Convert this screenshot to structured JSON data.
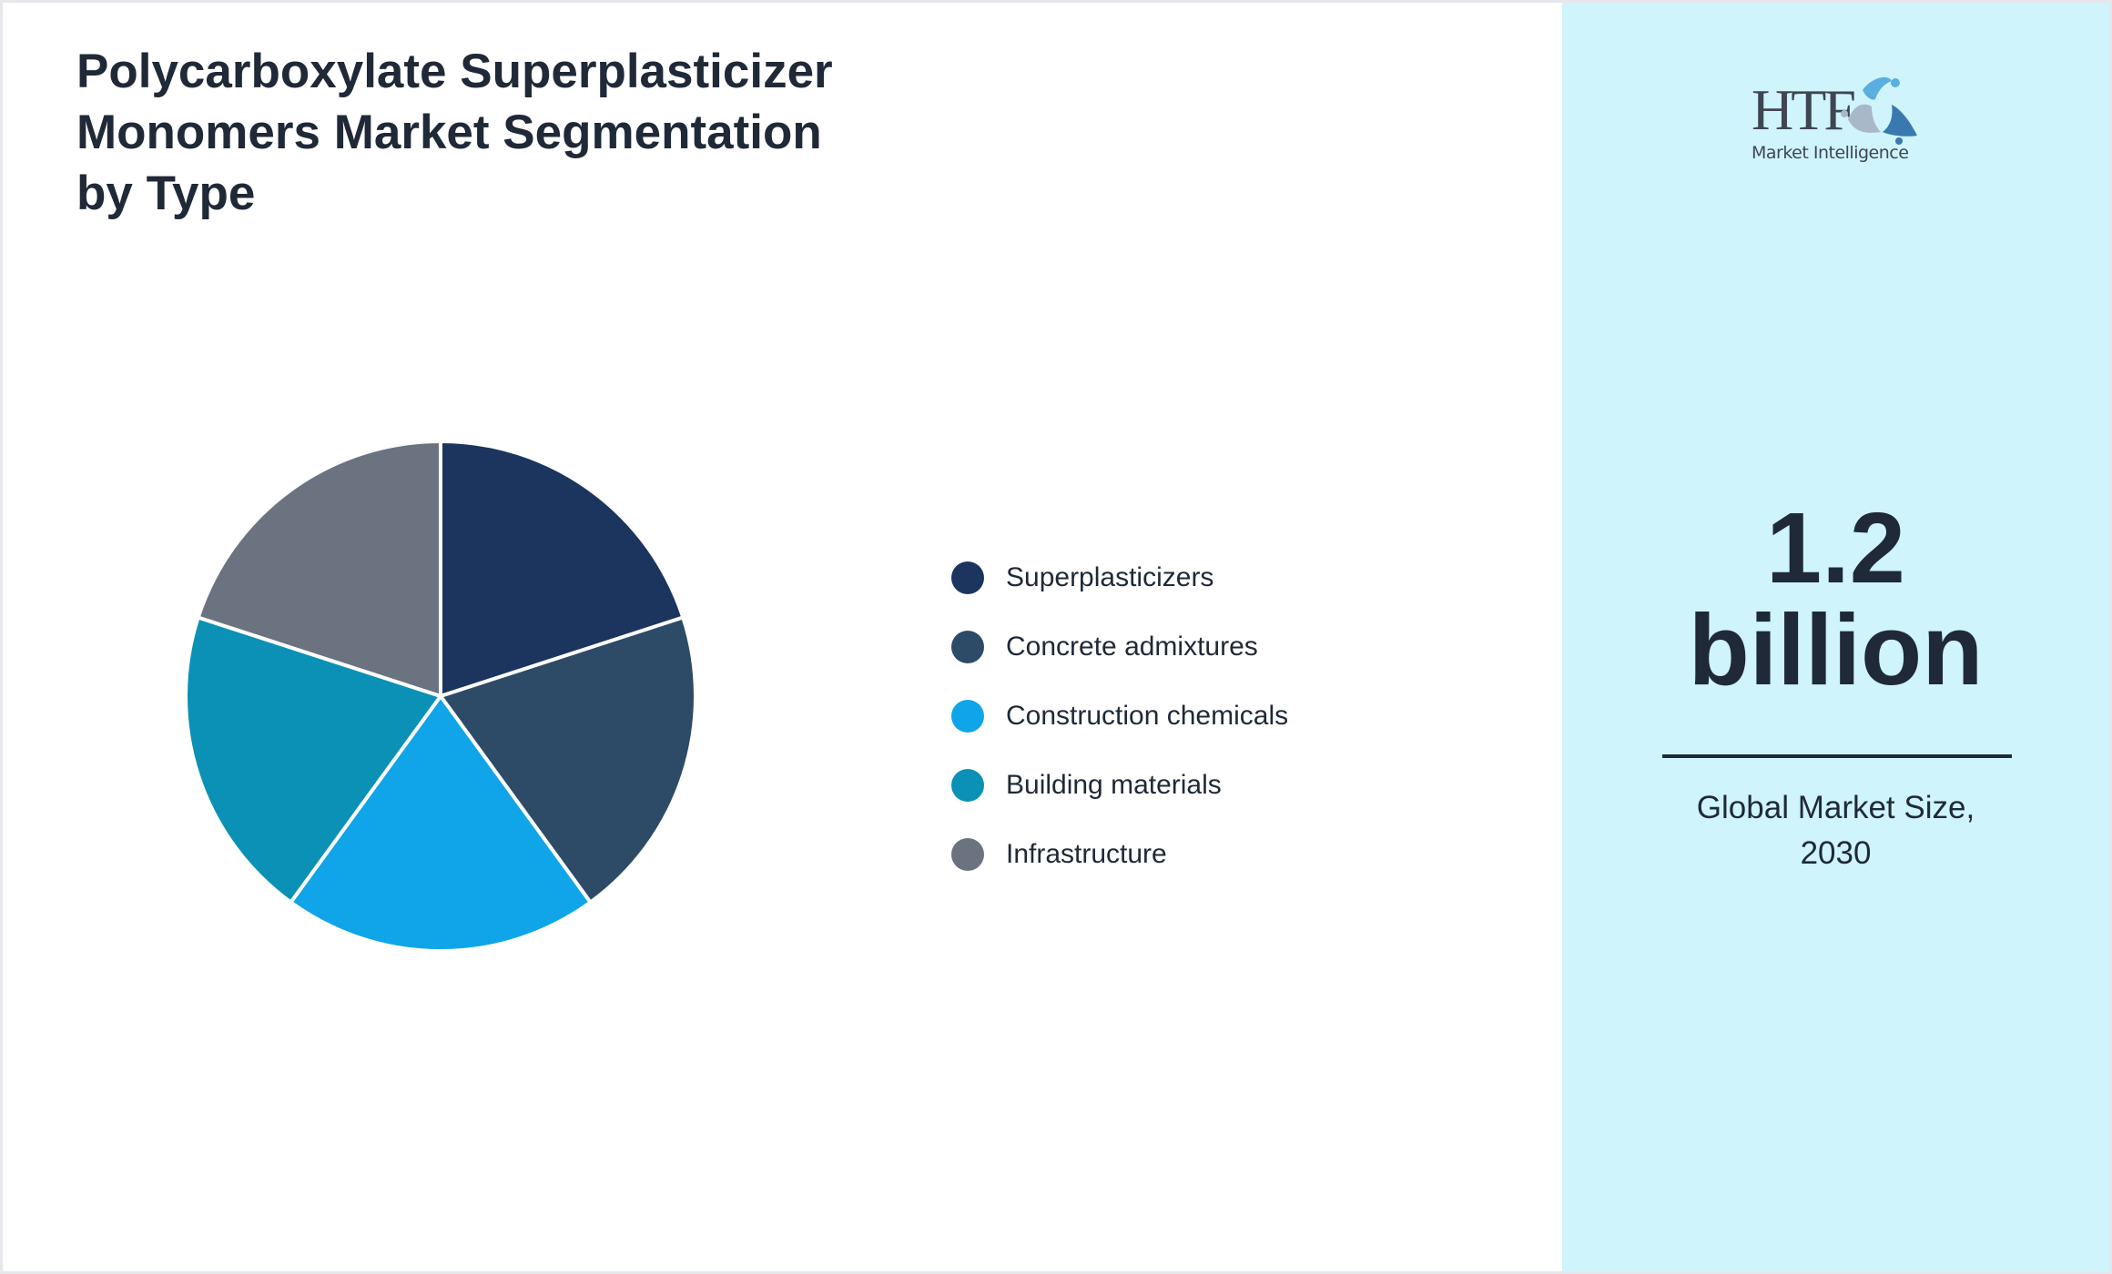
{
  "title": "Polycarboxylate Superplasticizer Monomers Market Segmentation by Type",
  "title_lines": [
    "Polycarboxylate Superplasticizer",
    "Monomers Market Segmentation",
    "by Type"
  ],
  "legend": [
    {
      "label": "Superplasticizers",
      "color": "#1c355e"
    },
    {
      "label": "Concrete admixtures",
      "color": "#2d4a67"
    },
    {
      "label": "Construction chemicals",
      "color": "#10a5e8"
    },
    {
      "label": "Building materials",
      "color": "#0a91b5"
    },
    {
      "label": "Infrastructure",
      "color": "#6b7280"
    }
  ],
  "logo": {
    "brand": "HTF",
    "tagline": "Market Intelligence"
  },
  "market_size": {
    "value": "1.2",
    "unit": "billion",
    "caption_line1": "Global Market Size,",
    "caption_line2": "2030"
  },
  "chart_data": {
    "type": "pie",
    "title": "Polycarboxylate Superplasticizer Monomers Market Segmentation by Type",
    "categories": [
      "Superplasticizers",
      "Concrete admixtures",
      "Construction chemicals",
      "Building materials",
      "Infrastructure"
    ],
    "values": [
      20,
      20,
      20,
      20,
      20
    ],
    "colors": [
      "#1c355e",
      "#2d4a67",
      "#10a5e8",
      "#0a91b5",
      "#6b7280"
    ],
    "start_angle": "12 o'clock, clockwise",
    "legend_position": "right",
    "xlabel": "",
    "ylabel": ""
  }
}
